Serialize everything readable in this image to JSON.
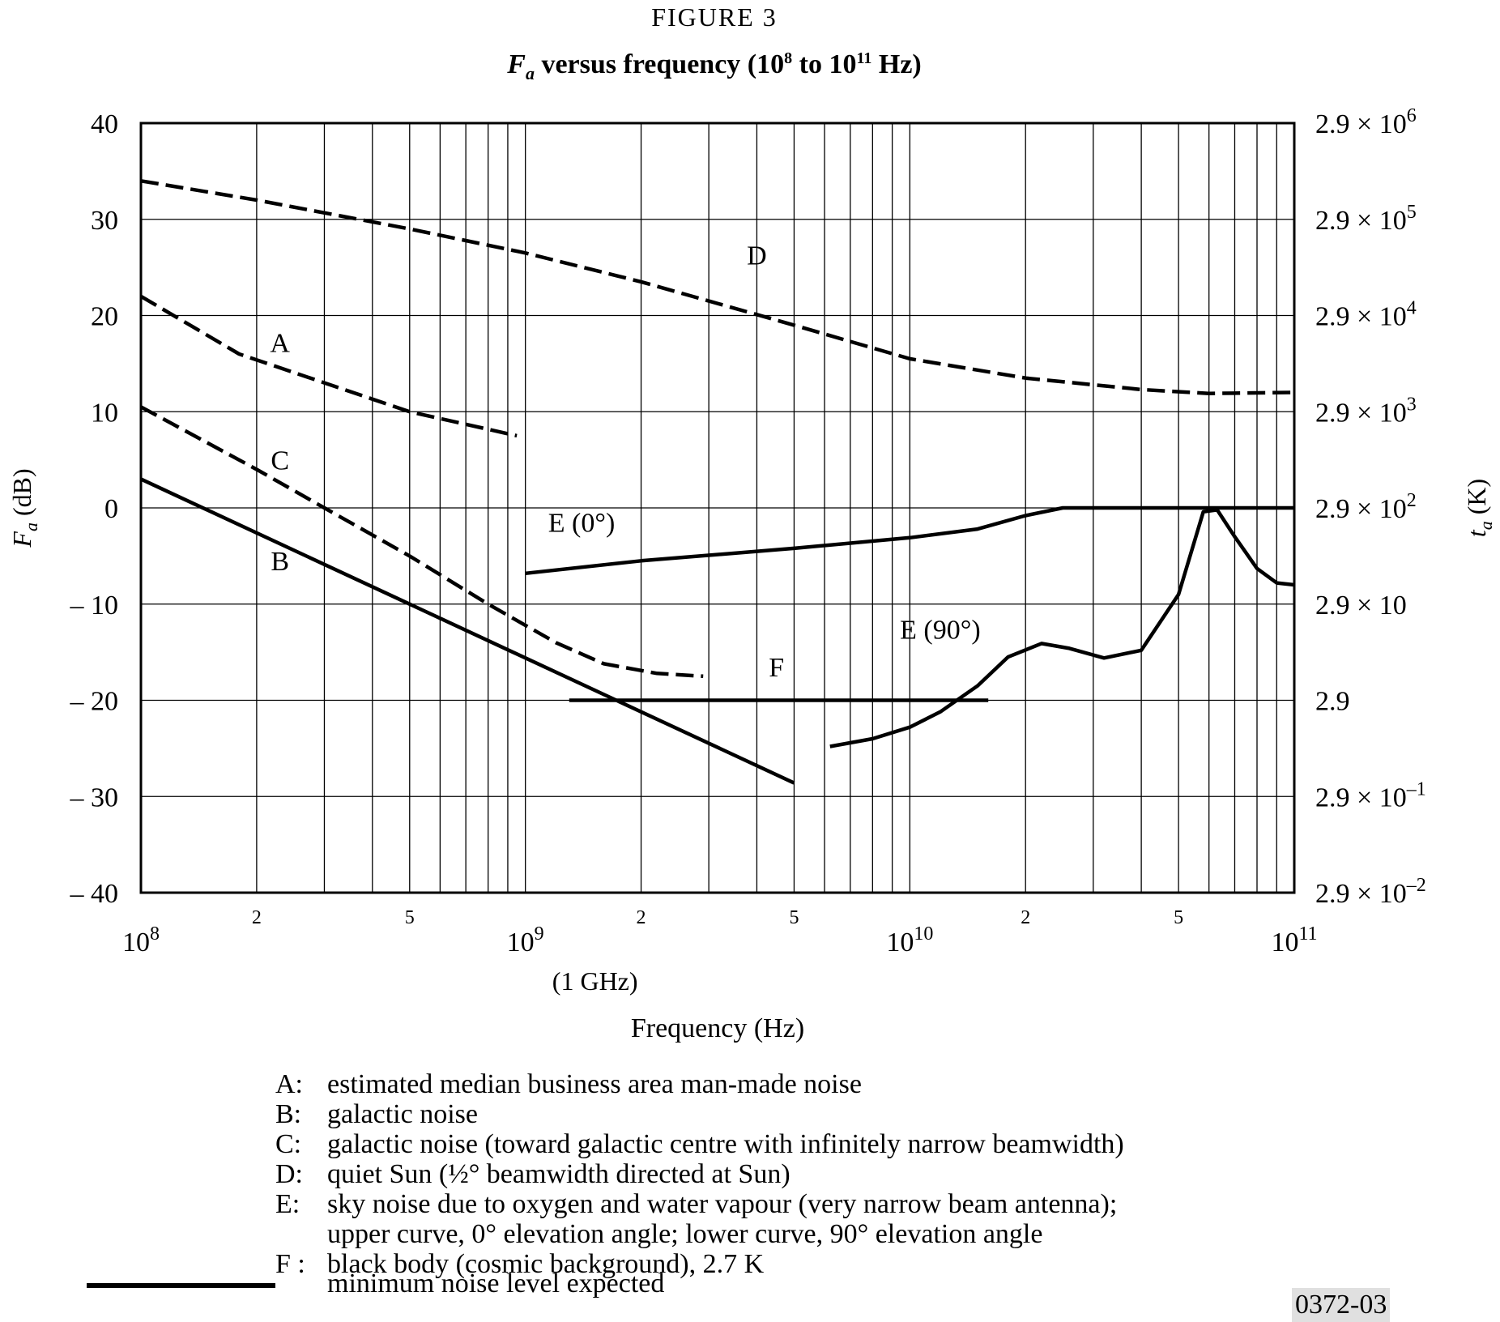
{
  "figure_label": "FIGURE 3",
  "figure_code": "0372-03",
  "chart_data": {
    "type": "line",
    "title_italic": "F",
    "title_sub": "a",
    "title_rest": " versus frequency (10",
    "title_exp1": "8",
    "title_mid": " to 10",
    "title_exp2": "11",
    "title_end": " Hz)",
    "x_scale": "log",
    "xlim": [
      100000000,
      100000000000
    ],
    "ylim": [
      -40,
      40
    ],
    "grid": true,
    "xlabel": "Frequency (Hz)",
    "ylabel_italic": "F",
    "ylabel_sub": "a",
    "ylabel_rest": " (dB)",
    "y2label_italic": "t",
    "y2label_sub": "a",
    "y2label_rest": " (K)",
    "y_ticks": [
      40,
      30,
      20,
      10,
      0,
      -10,
      -20,
      -30,
      -40
    ],
    "y_tick_labels": [
      "40",
      "30",
      "20",
      "10",
      "0",
      "– 10",
      "– 20",
      "– 30",
      "– 40"
    ],
    "x_major_ticks": [
      {
        "base": "10",
        "exp": "8",
        "note": ""
      },
      {
        "base": "10",
        "exp": "9",
        "note": "(1 GHz)"
      },
      {
        "base": "10",
        "exp": "10",
        "note": ""
      },
      {
        "base": "10",
        "exp": "11",
        "note": ""
      }
    ],
    "x_minor_labels": [
      "2",
      "5"
    ],
    "y2_tick_labels": [
      {
        "mant": "2.9",
        "times": "×",
        "base": "10",
        "exp": "6"
      },
      {
        "mant": "2.9",
        "times": "×",
        "base": "10",
        "exp": "5"
      },
      {
        "mant": "2.9",
        "times": "×",
        "base": "10",
        "exp": "4"
      },
      {
        "mant": "2.9",
        "times": "×",
        "base": "10",
        "exp": "3"
      },
      {
        "mant": "2.9",
        "times": "×",
        "base": "10",
        "exp": "2"
      },
      {
        "mant": "2.9",
        "times": "×",
        "base": "10",
        "exp": ""
      },
      {
        "mant": "2.9",
        "times": "",
        "base": "",
        "exp": ""
      },
      {
        "mant": "2.9",
        "times": "×",
        "base": "10",
        "exp": "–1"
      },
      {
        "mant": "2.9",
        "times": "×",
        "base": "10",
        "exp": "–2"
      }
    ],
    "series": [
      {
        "name": "A",
        "style": "dashed",
        "label_at": [
          230000000.0,
          16.2
        ],
        "points": [
          [
            100000000.0,
            22
          ],
          [
            180000000.0,
            16
          ],
          [
            300000000.0,
            13
          ],
          [
            500000000.0,
            10
          ],
          [
            950000000.0,
            7.5
          ]
        ]
      },
      {
        "name": "B",
        "style": "solid",
        "label_at": [
          230000000.0,
          -6.5
        ],
        "points": [
          [
            100000000.0,
            3
          ],
          [
            5000000000.0,
            -28.6
          ]
        ]
      },
      {
        "name": "C",
        "style": "dashed",
        "label_at": [
          230000000.0,
          4
        ],
        "points": [
          [
            100000000.0,
            10.5
          ],
          [
            200000000.0,
            4
          ],
          [
            300000000.0,
            0
          ],
          [
            500000000.0,
            -5
          ],
          [
            800000000.0,
            -10
          ],
          [
            1200000000.0,
            -14
          ],
          [
            1600000000.0,
            -16.2
          ],
          [
            2200000000.0,
            -17.2
          ],
          [
            2900000000.0,
            -17.5
          ]
        ]
      },
      {
        "name": "D",
        "style": "dashed",
        "label_at": [
          4000000000.0,
          25.3
        ],
        "points": [
          [
            100000000.0,
            34
          ],
          [
            200000000.0,
            32
          ],
          [
            500000000.0,
            29
          ],
          [
            1000000000.0,
            26.5
          ],
          [
            2000000000.0,
            23.5
          ],
          [
            5000000000.0,
            19
          ],
          [
            10000000000.0,
            15.5
          ],
          [
            20000000000.0,
            13.5
          ],
          [
            40000000000.0,
            12.3
          ],
          [
            60000000000.0,
            11.9
          ],
          [
            100000000000.0,
            12
          ]
        ]
      },
      {
        "name": "E (0°)",
        "style": "solid",
        "label_at": [
          1400000000.0,
          -2.5
        ],
        "points": [
          [
            1000000000.0,
            -6.8
          ],
          [
            2000000000.0,
            -5.5
          ],
          [
            5000000000.0,
            -4.2
          ],
          [
            10000000000.0,
            -3.1
          ],
          [
            15000000000.0,
            -2.2
          ],
          [
            20000000000.0,
            -0.8
          ],
          [
            25000000000.0,
            0
          ],
          [
            50000000000.0,
            0
          ],
          [
            100000000000.0,
            0
          ]
        ]
      },
      {
        "name": "E (90°)",
        "style": "solid",
        "label_at": [
          12000000000.0,
          -13.6
        ],
        "points": [
          [
            6200000000.0,
            -24.8
          ],
          [
            8000000000.0,
            -24
          ],
          [
            10000000000.0,
            -22.8
          ],
          [
            12000000000.0,
            -21.2
          ],
          [
            15000000000.0,
            -18.5
          ],
          [
            18000000000.0,
            -15.5
          ],
          [
            22000000000.0,
            -14.1
          ],
          [
            26000000000.0,
            -14.6
          ],
          [
            32000000000.0,
            -15.6
          ],
          [
            40000000000.0,
            -14.8
          ],
          [
            50000000000.0,
            -9
          ],
          [
            58000000000.0,
            -0.4
          ],
          [
            63000000000.0,
            -0.2
          ],
          [
            70000000000.0,
            -3
          ],
          [
            80000000000.0,
            -6.3
          ],
          [
            90000000000.0,
            -7.8
          ],
          [
            100000000000.0,
            -8
          ]
        ]
      },
      {
        "name": "F",
        "style": "solid",
        "label_at": [
          4500000000.0,
          -17.5
        ],
        "points": [
          [
            1300000000.0,
            -20
          ],
          [
            16000000000.0,
            -20
          ]
        ]
      }
    ],
    "legend": [
      {
        "key": "A:",
        "text": "estimated median business area man-made noise"
      },
      {
        "key": "B:",
        "text": "galactic noise"
      },
      {
        "key": "C:",
        "text": "galactic noise (toward galactic centre with infinitely narrow beamwidth)"
      },
      {
        "key": "D:",
        "text": "quiet Sun (½° beamwidth directed at Sun)"
      },
      {
        "key": "E:",
        "text": "sky noise due to oxygen and water vapour (very narrow beam antenna);"
      },
      {
        "key": "",
        "text": "upper curve, 0° elevation angle; lower curve, 90° elevation angle"
      },
      {
        "key": "F :",
        "text": "black body (cosmic background), 2.7 K"
      }
    ],
    "min_noise_label": "minimum noise level expected"
  }
}
